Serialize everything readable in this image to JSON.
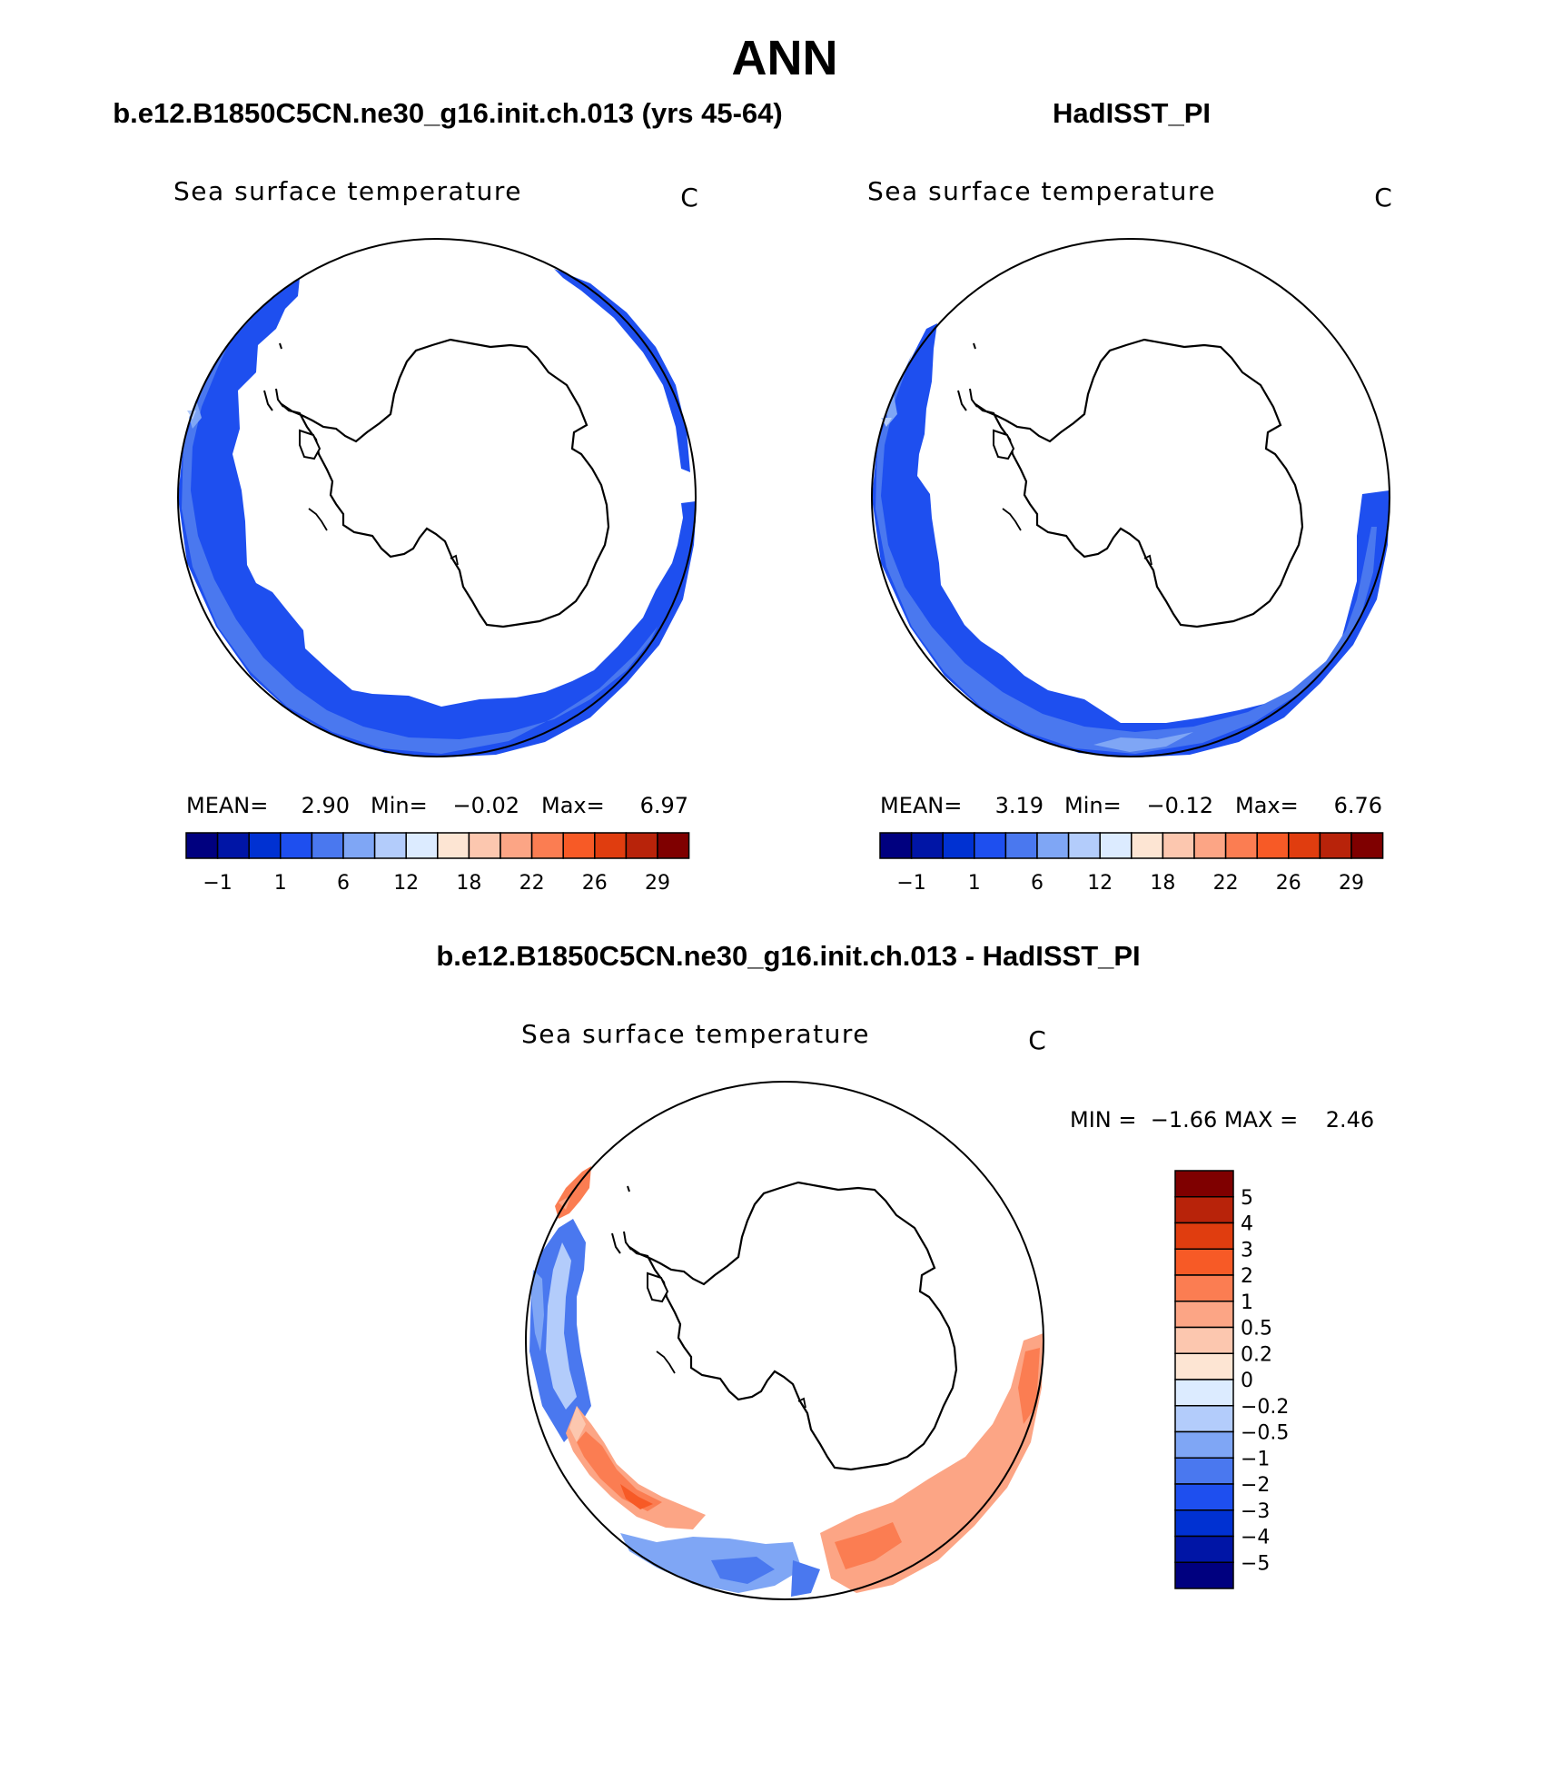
{
  "page_title": "ANN",
  "panel_model": {
    "header": "b.e12.B1850C5CN.ne30_g16.init.ch.013 (yrs 45-64)",
    "variable": "Sea surface temperature",
    "units": "C",
    "stats": {
      "mean_label": "MEAN=",
      "mean": "2.90",
      "min_label": "Min=",
      "min": "−0.02",
      "max_label": "Max=",
      "max": "6.97"
    }
  },
  "panel_obs": {
    "header": "HadISST_PI",
    "variable": "Sea surface temperature",
    "units": "C",
    "stats": {
      "mean_label": "MEAN=",
      "mean": "3.19",
      "min_label": "Min=",
      "min": "−0.12",
      "max_label": "Max=",
      "max": "6.76"
    }
  },
  "panel_diff": {
    "header": "b.e12.B1850C5CN.ne30_g16.init.ch.013 - HadISST_PI",
    "variable": "Sea surface temperature",
    "units": "C",
    "stats_text": "MIN =  −1.66 MAX =    2.46"
  },
  "colorbar_main": {
    "colors": [
      "#00007f",
      "#0015a6",
      "#0031d2",
      "#1e4fef",
      "#4a78ef",
      "#7fa6f5",
      "#b3ccfb",
      "#dcebff",
      "#fde5d3",
      "#fcc7af",
      "#fca585",
      "#fb7d52",
      "#f75a26",
      "#e03d0f",
      "#b8230a",
      "#7f0000"
    ],
    "tick_labels": [
      "−1",
      "1",
      "6",
      "12",
      "18",
      "22",
      "26",
      "29"
    ]
  },
  "colorbar_diff": {
    "colors": [
      "#00007f",
      "#0015a6",
      "#0031d2",
      "#1e4fef",
      "#4a78ef",
      "#7fa6f5",
      "#b3ccfb",
      "#dcebff",
      "#fde5d3",
      "#fcc7af",
      "#fca585",
      "#fb7d52",
      "#f75a26",
      "#e03d0f",
      "#b8230a",
      "#7f0000"
    ],
    "tick_labels": [
      "−5",
      "−4",
      "−3",
      "−2",
      "−1",
      "−0.5",
      "−0.2",
      "0",
      "0.2",
      "0.5",
      "1",
      "2",
      "3",
      "4",
      "5"
    ]
  },
  "field_colors": {
    "ocean_blue": "#1e4fef",
    "ocean_mid": "#4a78ef",
    "ocean_light": "#7fa6f5",
    "ocean_pale": "#b3ccfb",
    "diff_red": "#fb7d52",
    "diff_salmon": "#fca585",
    "diff_peach": "#fcc7af",
    "diff_dark_red": "#f75a26"
  }
}
